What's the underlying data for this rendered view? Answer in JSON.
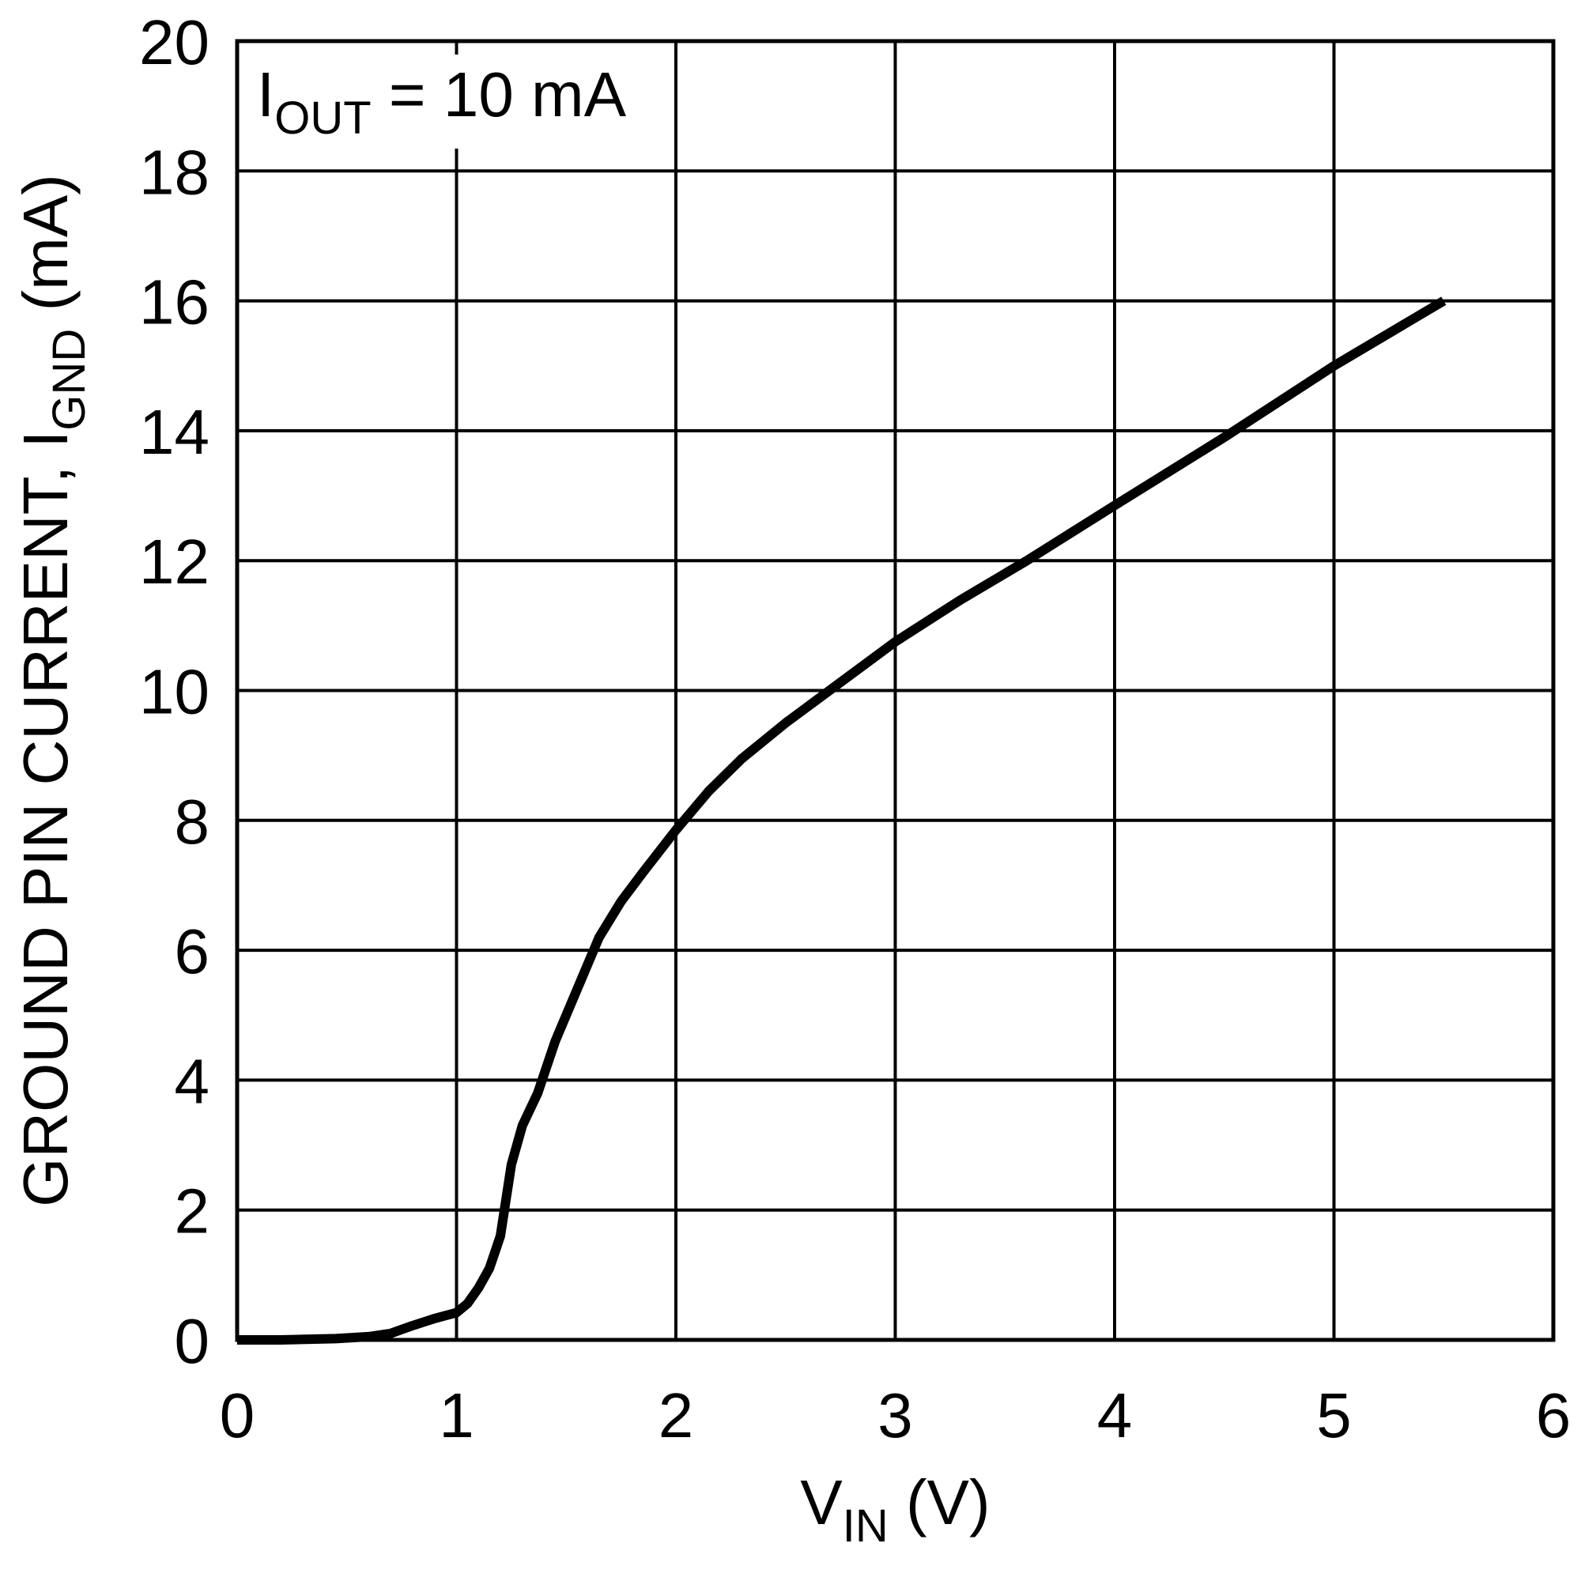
{
  "chart_data": {
    "type": "line",
    "title": "",
    "annotation": {
      "main": "I",
      "sub": "OUT",
      "rest": " = 10 mA"
    },
    "xlabel": {
      "main": "V",
      "sub": "IN",
      "rest": " (V)"
    },
    "ylabel": {
      "main": "GROUND PIN CURRENT, I",
      "sub": "GND",
      "rest": " (mA)"
    },
    "xlim": [
      0,
      6
    ],
    "ylim": [
      0,
      20
    ],
    "x_ticks": [
      0,
      1,
      2,
      3,
      4,
      5,
      6
    ],
    "x_tick_labels": [
      "0",
      "1",
      "2",
      "3",
      "4",
      "5",
      "6"
    ],
    "y_ticks": [
      0,
      2,
      4,
      6,
      8,
      10,
      12,
      14,
      16,
      18,
      20
    ],
    "y_tick_labels": [
      "0",
      "2",
      "4",
      "6",
      "8",
      "10",
      "12",
      "14",
      "16",
      "18",
      "20"
    ],
    "grid": true,
    "line_color": "#000000",
    "series": [
      {
        "name": "IOUT = 10 mA",
        "x": [
          0.0,
          0.2,
          0.45,
          0.6,
          0.7,
          0.8,
          0.9,
          1.0,
          1.05,
          1.1,
          1.15,
          1.2,
          1.25,
          1.3,
          1.37,
          1.45,
          1.55,
          1.65,
          1.75,
          1.85,
          2.0,
          2.15,
          2.3,
          2.5,
          2.7,
          3.0,
          3.3,
          3.6,
          4.0,
          4.5,
          5.0,
          5.5
        ],
        "y": [
          0.0,
          0.0,
          0.02,
          0.05,
          0.1,
          0.22,
          0.33,
          0.42,
          0.56,
          0.8,
          1.1,
          1.6,
          2.7,
          3.3,
          3.8,
          4.6,
          5.4,
          6.2,
          6.75,
          7.2,
          7.85,
          8.45,
          8.95,
          9.5,
          10.0,
          10.75,
          11.4,
          12.0,
          12.85,
          13.9,
          15.0,
          16.0
        ]
      }
    ]
  }
}
